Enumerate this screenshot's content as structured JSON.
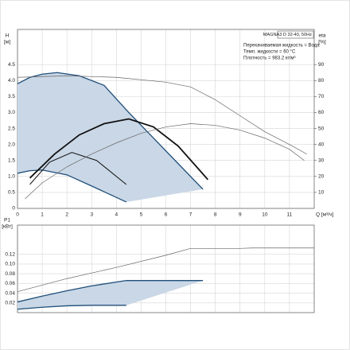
{
  "chart_data": [
    {
      "type": "line",
      "ylabel": "H",
      "yunit": "[м]",
      "y2label": "eta",
      "y2unit": "[%]",
      "xlabel": "Q [м³/ч]",
      "annotations": [
        "MAGNA3 D 32-40, 50Hz",
        "Перекачиваемая жидкость = Вода",
        "Темп. жидкости = 60 °C",
        "Плотность = 983.2 кг/м³"
      ],
      "xlim": [
        0,
        12
      ],
      "xticks": [
        0,
        1,
        2,
        3,
        4,
        5,
        6,
        7,
        8,
        9,
        10,
        11
      ],
      "ylim": [
        0,
        5.6
      ],
      "yticks": [
        0,
        0.5,
        {
          "value": 1,
          "label": "1.0"
        },
        1.5,
        {
          "value": 2,
          "label": "2.0"
        },
        2.5,
        {
          "value": 3,
          "label": "3.0"
        },
        3.5,
        {
          "value": 4,
          "label": "4.0"
        },
        4.5
      ],
      "y2lim": [
        0,
        112
      ],
      "y2ticks": [
        10,
        20,
        30,
        40,
        50,
        60,
        70,
        80,
        90
      ],
      "grid": true,
      "fill_between": [
        0,
        1
      ],
      "fill_color": "#c9d7e6",
      "series": [
        {
          "color": "#1f4e79",
          "width": 1.3,
          "x": [
            0,
            0.5,
            1,
            1.6,
            2.5,
            3.5,
            4.5,
            5.5,
            6.5,
            7.5
          ],
          "values": [
            3.9,
            4.1,
            4.2,
            4.25,
            4.15,
            3.85,
            3.0,
            2.2,
            1.4,
            0.6
          ]
        },
        {
          "color": "#1f4e79",
          "width": 1.3,
          "x": [
            0,
            0.5,
            1,
            2,
            3,
            4.4
          ],
          "values": [
            1.1,
            1.18,
            1.2,
            1.05,
            0.7,
            0.2
          ]
        },
        {
          "color": "#111111",
          "width": 1.8,
          "x": [
            0.5,
            1.5,
            2.5,
            3.5,
            4.5,
            5.5,
            6.5,
            7.7
          ],
          "values": [
            0.95,
            1.7,
            2.3,
            2.65,
            2.8,
            2.55,
            1.95,
            0.9
          ]
        },
        {
          "color": "#111111",
          "width": 1,
          "x": [
            0.5,
            1.3,
            2.2,
            3.2,
            4.4
          ],
          "values": [
            0.75,
            1.45,
            1.75,
            1.5,
            0.75
          ]
        },
        {
          "color": "#666666",
          "width": 0.7,
          "axis": "y2",
          "x": [
            0,
            2,
            4,
            6,
            7,
            8,
            9,
            10,
            11,
            11.7
          ],
          "values": [
            82,
            83,
            82,
            79,
            76,
            68,
            58,
            48,
            40,
            34
          ]
        },
        {
          "color": "#666666",
          "width": 0.7,
          "axis": "y2",
          "x": [
            0.3,
            1,
            2,
            3,
            4,
            5,
            6,
            7,
            8,
            9,
            10,
            11,
            11.6
          ],
          "values": [
            6,
            16,
            26,
            34,
            41,
            47,
            51,
            53,
            52,
            49,
            44,
            37,
            30
          ]
        }
      ]
    },
    {
      "type": "line",
      "ylabel": "P1",
      "yunit": "[кВт]",
      "xlim": [
        0,
        12
      ],
      "xticks": [
        0,
        1,
        2,
        3,
        4,
        5,
        6,
        7,
        8,
        9,
        10,
        11
      ],
      "ylim": [
        0,
        0.18
      ],
      "yticks": [
        0.02,
        0.04,
        0.06,
        0.08,
        {
          "value": 0.1,
          "label": "0.10"
        },
        0.12
      ],
      "grid": true,
      "fill_between": [
        0,
        1
      ],
      "fill_color": "#c9d7e6",
      "series": [
        {
          "color": "#1f4e79",
          "width": 1.3,
          "x": [
            0,
            1,
            2,
            3,
            4.4,
            7.5
          ],
          "values": [
            0.022,
            0.034,
            0.045,
            0.055,
            0.066,
            0.066
          ]
        },
        {
          "color": "#1f4e79",
          "width": 1.3,
          "x": [
            0,
            1,
            2,
            3,
            4.4
          ],
          "values": [
            0.007,
            0.011,
            0.014,
            0.015,
            0.015
          ]
        },
        {
          "color": "#666666",
          "width": 0.7,
          "x": [
            0,
            2,
            4,
            6,
            7,
            9,
            9.5,
            12
          ],
          "values": [
            0.043,
            0.07,
            0.093,
            0.118,
            0.132,
            0.132,
            0.133,
            0.133
          ]
        }
      ]
    }
  ]
}
